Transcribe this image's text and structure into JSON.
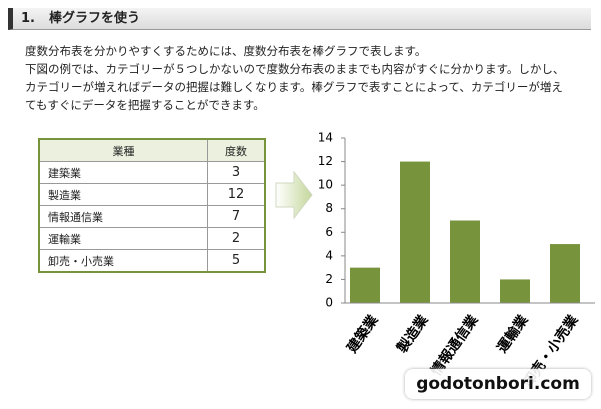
{
  "header": {
    "number": "1.",
    "title": "棒グラフを使う"
  },
  "paragraphs": [
    [
      "度数分布表を分かりやすくするためには、度数分布表を棒グラフで表します。"
    ],
    [
      "下図の例では、カテゴリーが５つしかないので度数分布表のままでも内容がすぐに分かります。しかし、",
      "カテゴリーが増えればデータの把握は難しくなります。棒グラフで表すことによって、カテゴリーが増え",
      "てもすぐにデータを把握することができます。"
    ]
  ],
  "table": {
    "header": [
      "業種",
      "度数"
    ],
    "rows": [
      [
        "建築業",
        3
      ],
      [
        "製造業",
        12
      ],
      [
        "情報通信業",
        7
      ],
      [
        "運輸業",
        2
      ],
      [
        "卸売・小売業",
        5
      ]
    ]
  },
  "chart_data": {
    "type": "bar",
    "categories": [
      "建築業",
      "製造業",
      "情報通信業",
      "運輸業",
      "卸売・小売業"
    ],
    "values": [
      3,
      12,
      7,
      2,
      5
    ],
    "color": "#77933c",
    "ylim": [
      0,
      14
    ],
    "yticks": [
      0,
      2,
      4,
      6,
      8,
      10,
      12,
      14
    ],
    "grid": false
  },
  "watermark": "godotonbori.com"
}
